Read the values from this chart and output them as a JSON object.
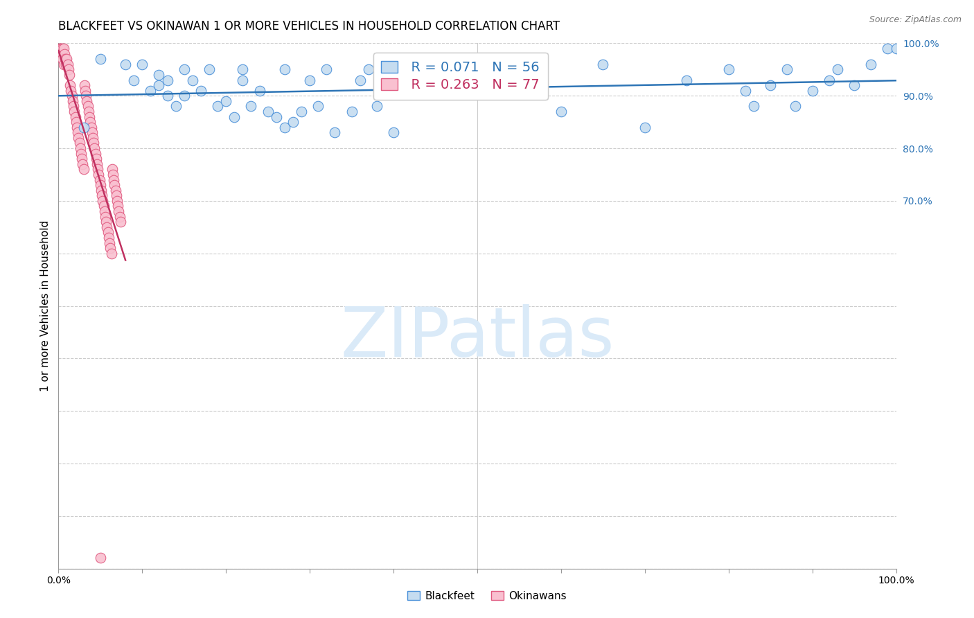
{
  "title": "BLACKFEET VS OKINAWAN 1 OR MORE VEHICLES IN HOUSEHOLD CORRELATION CHART",
  "source": "Source: ZipAtlas.com",
  "ylabel": "1 or more Vehicles in Household",
  "blackfeet_color": "#c5dcf0",
  "blackfeet_edge_color": "#4a90d9",
  "okinawan_color": "#f9c0d0",
  "okinawan_edge_color": "#e05a80",
  "regression_blackfeet_color": "#2e75b6",
  "regression_okinawan_color": "#c03060",
  "watermark_color": "#daeaf8",
  "legend_r_blackfeet": "R = 0.071",
  "legend_n_blackfeet": "N = 56",
  "legend_r_okinawan": "R = 0.263",
  "legend_n_okinawan": "N = 77",
  "blackfeet_x": [
    3,
    5,
    8,
    9,
    10,
    11,
    12,
    12,
    13,
    13,
    14,
    15,
    15,
    16,
    17,
    18,
    19,
    20,
    21,
    22,
    22,
    23,
    24,
    25,
    26,
    27,
    27,
    28,
    29,
    30,
    31,
    32,
    33,
    35,
    36,
    37,
    38,
    40,
    50,
    60,
    65,
    70,
    75,
    80,
    82,
    83,
    85,
    87,
    88,
    90,
    92,
    93,
    95,
    97,
    99,
    100
  ],
  "blackfeet_y": [
    84,
    97,
    96,
    93,
    96,
    91,
    92,
    94,
    90,
    93,
    88,
    90,
    95,
    93,
    91,
    95,
    88,
    89,
    86,
    93,
    95,
    88,
    91,
    87,
    86,
    84,
    95,
    85,
    87,
    93,
    88,
    95,
    83,
    87,
    93,
    95,
    88,
    83,
    96,
    87,
    96,
    84,
    93,
    95,
    91,
    88,
    92,
    95,
    88,
    91,
    93,
    95,
    92,
    96,
    99,
    99
  ],
  "okinawan_x": [
    0.1,
    0.2,
    0.3,
    0.4,
    0.5,
    0.5,
    0.6,
    0.6,
    0.7,
    0.8,
    0.9,
    1.0,
    1.1,
    1.2,
    1.3,
    1.4,
    1.5,
    1.6,
    1.7,
    1.8,
    1.9,
    2.0,
    2.1,
    2.2,
    2.3,
    2.4,
    2.5,
    2.6,
    2.7,
    2.8,
    2.9,
    3.0,
    3.1,
    3.2,
    3.3,
    3.4,
    3.5,
    3.6,
    3.7,
    3.8,
    3.9,
    4.0,
    4.1,
    4.2,
    4.3,
    4.4,
    4.5,
    4.6,
    4.7,
    4.8,
    4.9,
    5.0,
    5.1,
    5.2,
    5.3,
    5.4,
    5.5,
    5.6,
    5.7,
    5.8,
    5.9,
    6.0,
    6.1,
    6.2,
    6.3,
    6.4,
    6.5,
    6.6,
    6.7,
    6.8,
    6.9,
    7.0,
    7.1,
    7.2,
    7.3,
    7.4,
    5.0
  ],
  "okinawan_y": [
    99,
    99,
    99,
    98,
    99,
    97,
    99,
    96,
    98,
    97,
    96,
    97,
    96,
    95,
    94,
    92,
    91,
    90,
    89,
    88,
    87,
    86,
    85,
    84,
    83,
    82,
    81,
    80,
    79,
    78,
    77,
    76,
    92,
    91,
    90,
    89,
    88,
    87,
    86,
    85,
    84,
    83,
    82,
    81,
    80,
    79,
    78,
    77,
    76,
    75,
    74,
    73,
    72,
    71,
    70,
    69,
    68,
    67,
    66,
    65,
    64,
    63,
    62,
    61,
    60,
    76,
    75,
    74,
    73,
    72,
    71,
    70,
    69,
    68,
    67,
    66,
    2
  ]
}
